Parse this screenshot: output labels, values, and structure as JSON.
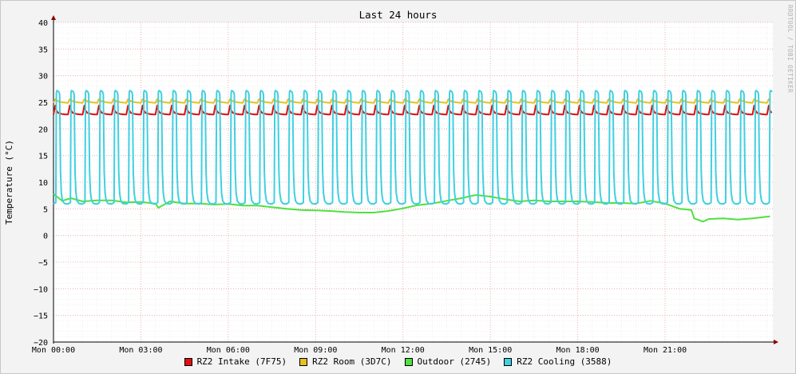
{
  "chart_data": {
    "type": "line",
    "title": "Last 24 hours",
    "ylabel": "Temperature (°C)",
    "watermark": "RRDTOOL / TOBI OETIKER",
    "ylim": [
      -20,
      40
    ],
    "xlim": [
      0,
      24.7
    ],
    "yticks": [
      40,
      35,
      30,
      25,
      20,
      15,
      10,
      5,
      0,
      -5,
      -10,
      -15,
      -20
    ],
    "ytick_labels": [
      "40",
      "35",
      "30",
      "25",
      "20",
      "15",
      "10",
      "5",
      "0",
      "−5",
      "−10",
      "−15",
      "−20"
    ],
    "xticks": [
      0,
      3,
      6,
      9,
      12,
      15,
      18,
      21
    ],
    "xtick_labels": [
      "Mon 00:00",
      "Mon 03:00",
      "Mon 06:00",
      "Mon 09:00",
      "Mon 12:00",
      "Mon 15:00",
      "Mon 18:00",
      "Mon 21:00"
    ],
    "grid": true,
    "cycle_hours": 0.5,
    "series": [
      {
        "name": "RZ2 Intake (7F75)",
        "color": "#e01010",
        "pattern": "cycle",
        "cycle_points": [
          [
            0,
            22.7
          ],
          [
            0.06,
            24.4
          ],
          [
            0.1,
            23.5
          ],
          [
            0.16,
            23.0
          ],
          [
            0.3,
            22.8
          ],
          [
            0.44,
            22.7
          ],
          [
            0.5,
            22.7
          ]
        ]
      },
      {
        "name": "RZ2 Room (3D7C)",
        "color": "#e8c020",
        "pattern": "cycle",
        "cycle_points": [
          [
            0,
            24.9
          ],
          [
            0.06,
            25.6
          ],
          [
            0.12,
            25.3
          ],
          [
            0.3,
            25.0
          ],
          [
            0.5,
            24.9
          ]
        ]
      },
      {
        "name": "Outdoor (2745)",
        "color": "#50e040",
        "pattern": "trend",
        "points": [
          [
            0,
            7.8
          ],
          [
            0.3,
            6.5
          ],
          [
            0.6,
            7.0
          ],
          [
            1.0,
            6.4
          ],
          [
            1.5,
            6.6
          ],
          [
            2.0,
            6.6
          ],
          [
            2.5,
            6.2
          ],
          [
            3.0,
            6.3
          ],
          [
            3.5,
            6.0
          ],
          [
            3.6,
            5.2
          ],
          [
            4.0,
            6.4
          ],
          [
            4.5,
            6.0
          ],
          [
            5.0,
            6.0
          ],
          [
            5.5,
            5.8
          ],
          [
            6.0,
            5.9
          ],
          [
            6.5,
            5.6
          ],
          [
            7.0,
            5.6
          ],
          [
            7.5,
            5.3
          ],
          [
            8.0,
            5.0
          ],
          [
            8.5,
            4.8
          ],
          [
            9.0,
            4.7
          ],
          [
            9.5,
            4.6
          ],
          [
            10.0,
            4.4
          ],
          [
            10.5,
            4.3
          ],
          [
            11.0,
            4.3
          ],
          [
            11.5,
            4.6
          ],
          [
            12.0,
            5.1
          ],
          [
            12.5,
            5.7
          ],
          [
            13.0,
            6.0
          ],
          [
            13.5,
            6.5
          ],
          [
            14.0,
            7.0
          ],
          [
            14.5,
            7.6
          ],
          [
            15.0,
            7.3
          ],
          [
            15.5,
            6.8
          ],
          [
            16.0,
            6.4
          ],
          [
            16.5,
            6.6
          ],
          [
            17.0,
            6.4
          ],
          [
            17.5,
            6.4
          ],
          [
            18.0,
            6.4
          ],
          [
            18.5,
            6.3
          ],
          [
            19.0,
            6.1
          ],
          [
            19.5,
            6.1
          ],
          [
            20.0,
            6.0
          ],
          [
            20.5,
            6.5
          ],
          [
            21.0,
            6.0
          ],
          [
            21.5,
            5.0
          ],
          [
            21.9,
            4.8
          ],
          [
            22.0,
            3.2
          ],
          [
            22.3,
            2.6
          ],
          [
            22.5,
            3.1
          ],
          [
            23.0,
            3.2
          ],
          [
            23.5,
            3.0
          ],
          [
            24.0,
            3.2
          ],
          [
            24.6,
            3.6
          ]
        ]
      },
      {
        "name": "RZ2 Cooling (3588)",
        "color": "#40d0e0",
        "pattern": "cycle",
        "cycle_points": [
          [
            0,
            5.9
          ],
          [
            0.08,
            6.2
          ],
          [
            0.1,
            26.8
          ],
          [
            0.12,
            27.2
          ],
          [
            0.18,
            27.0
          ],
          [
            0.21,
            26.5
          ],
          [
            0.24,
            12.0
          ],
          [
            0.27,
            8.0
          ],
          [
            0.31,
            6.5
          ],
          [
            0.38,
            6.0
          ],
          [
            0.5,
            5.9
          ]
        ]
      }
    ]
  }
}
